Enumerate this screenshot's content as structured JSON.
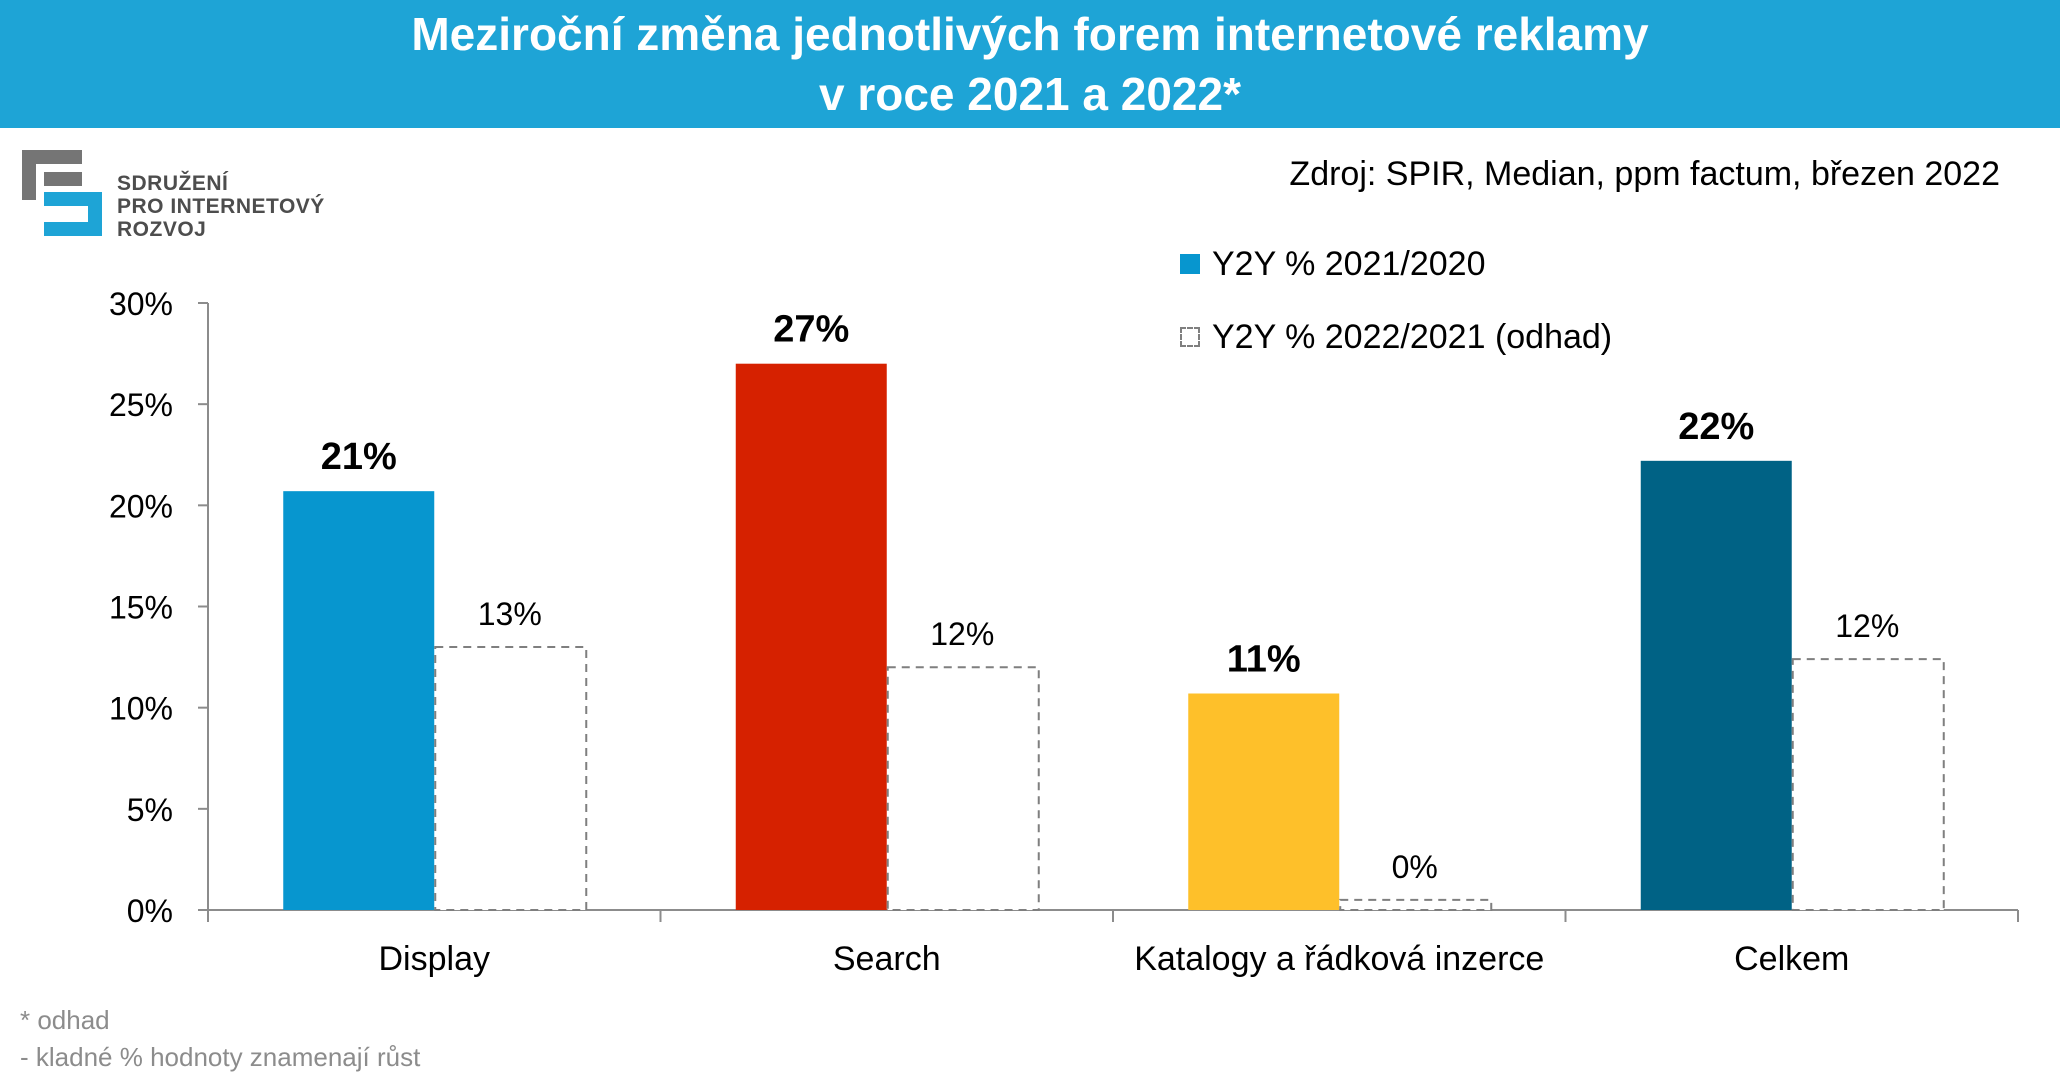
{
  "title": {
    "line1": "Meziroční změna jednotlivých forem internetové reklamy",
    "line2": "v roce 2021 a 2022*"
  },
  "logo": {
    "lines": [
      "SDRUŽENÍ",
      "PRO INTERNETOVÝ",
      "ROZVOJ"
    ],
    "colors": {
      "gray": "#757575",
      "blue": "#1ea4d6"
    }
  },
  "source": "Zdroj: SPIR, Median, ppm factum, březen 2022",
  "legend": {
    "series1": "Y2Y % 2021/2020",
    "series2": "Y2Y % 2022/2021 (odhad)"
  },
  "footnotes": {
    "note1": "* odhad",
    "note2": "- kladné % hodnoty znamenají růst"
  },
  "chart_data": {
    "type": "bar",
    "categories": [
      "Display",
      "Search",
      "Katalogy a řádková inzerce",
      "Celkem"
    ],
    "series": [
      {
        "name": "Y2Y % 2021/2020",
        "values": [
          20.7,
          27.0,
          10.7,
          22.2
        ],
        "labels": [
          "21%",
          "27%",
          "11%",
          "22%"
        ],
        "colors": [
          "#0796cf",
          "#d62100",
          "#fec02a",
          "#006285"
        ]
      },
      {
        "name": "Y2Y % 2022/2021 (odhad)",
        "values": [
          13.0,
          12.0,
          0.5,
          12.4
        ],
        "labels": [
          "13%",
          "12%",
          "0%",
          "12%"
        ],
        "style": "dashed-outline",
        "color": "#7f7f7f"
      }
    ],
    "ylim": [
      0,
      30
    ],
    "yticks": [
      "0%",
      "5%",
      "10%",
      "15%",
      "20%",
      "25%",
      "30%"
    ],
    "grid": false,
    "legend_position": "top-right"
  }
}
